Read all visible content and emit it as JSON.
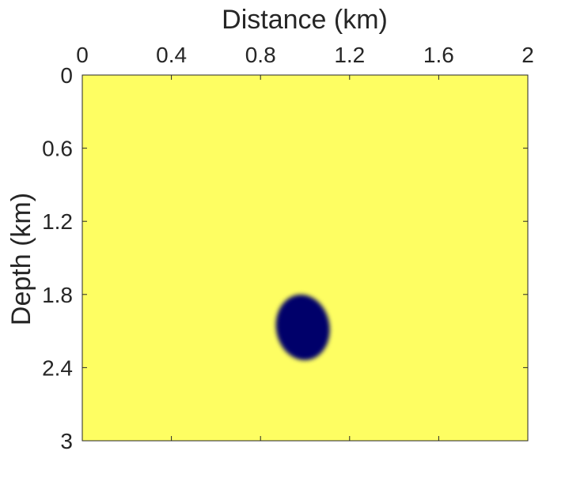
{
  "chart_data": {
    "type": "heatmap",
    "title": "",
    "xlabel": "Distance (km)",
    "ylabel": "Depth (km)",
    "x_axis_position": "top",
    "y_direction": "reversed",
    "xlim": [
      0,
      2
    ],
    "ylim": [
      0,
      3
    ],
    "xticks": [
      0,
      0.4,
      0.8,
      1.2,
      1.6,
      2
    ],
    "xtick_labels": [
      "0",
      "0.4",
      "0.8",
      "1.2",
      "1.6",
      "2"
    ],
    "yticks": [
      0,
      0.6,
      1.2,
      1.8,
      2.4,
      3
    ],
    "ytick_labels": [
      "0",
      "0.6",
      "1.2",
      "1.8",
      "2.4",
      "3"
    ],
    "grid": false,
    "background_value": "high",
    "anomaly": {
      "value": "low",
      "center_x_km": 0.99,
      "center_y_km": 2.07,
      "half_width_km": 0.12,
      "half_height_km": 0.27,
      "tilt_deg": -10
    },
    "colors": {
      "background": "#fefe62",
      "anomaly": "#06066b",
      "axis": "#262626"
    }
  }
}
